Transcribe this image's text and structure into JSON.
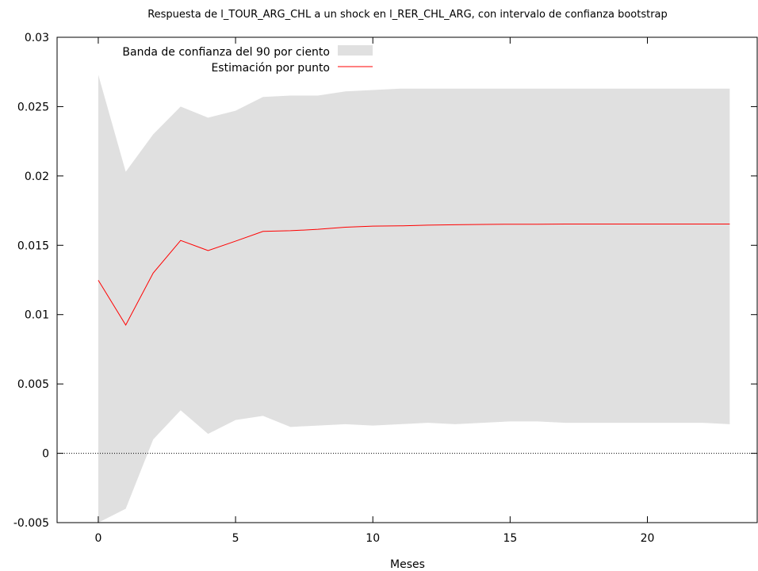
{
  "chart_data": {
    "type": "area",
    "title": "Respuesta de l_TOUR_ARG_CHL a un shock en l_RER_CHL_ARG, con intervalo de confianza bootstrap",
    "xlabel": "Meses",
    "ylabel": "",
    "xlim": [
      -1.5,
      24
    ],
    "ylim": [
      -0.005,
      0.03
    ],
    "xticks": [
      0,
      5,
      10,
      15,
      20
    ],
    "xtick_labels": [
      "0",
      "5",
      "10",
      "15",
      "20"
    ],
    "yticks": [
      -0.005,
      0,
      0.005,
      0.01,
      0.015,
      0.02,
      0.025,
      0.03
    ],
    "ytick_labels": [
      "-0.005",
      "0",
      "0.005",
      "0.01",
      "0.015",
      "0.02",
      "0.025",
      "0.03"
    ],
    "grid": false,
    "zero_line": true,
    "legend_position": "top-left",
    "colors": {
      "band": "#e0e0e0",
      "point": "#ff0000",
      "zero": "#000000"
    },
    "x": [
      0,
      1,
      2,
      3,
      4,
      5,
      6,
      7,
      8,
      9,
      10,
      11,
      12,
      13,
      14,
      15,
      16,
      17,
      18,
      19,
      20,
      21,
      22,
      23
    ],
    "series": [
      {
        "name": "Estimación por punto",
        "kind": "line",
        "values": [
          0.01248,
          0.00925,
          0.013,
          0.01535,
          0.01462,
          0.0153,
          0.016,
          0.01605,
          0.01615,
          0.0163,
          0.01638,
          0.0164,
          0.01645,
          0.01648,
          0.0165,
          0.01652,
          0.01652,
          0.01653,
          0.01653,
          0.01653,
          0.01653,
          0.01653,
          0.01653,
          0.01653
        ]
      },
      {
        "name": "Banda de confianza del 90 por ciento",
        "kind": "band",
        "upper": [
          0.0273,
          0.0203,
          0.023,
          0.025,
          0.0242,
          0.0247,
          0.0257,
          0.0258,
          0.0258,
          0.0261,
          0.0262,
          0.0263,
          0.0263,
          0.0263,
          0.0263,
          0.0263,
          0.0263,
          0.0263,
          0.0263,
          0.0263,
          0.0263,
          0.0263,
          0.0263,
          0.0263
        ],
        "lower": [
          -0.005,
          -0.004,
          0.001,
          0.0031,
          0.0014,
          0.0024,
          0.0027,
          0.0019,
          0.002,
          0.0021,
          0.002,
          0.0021,
          0.0022,
          0.0021,
          0.0022,
          0.0023,
          0.0023,
          0.0022,
          0.0022,
          0.0022,
          0.0022,
          0.0022,
          0.0022,
          0.0021
        ]
      }
    ]
  }
}
